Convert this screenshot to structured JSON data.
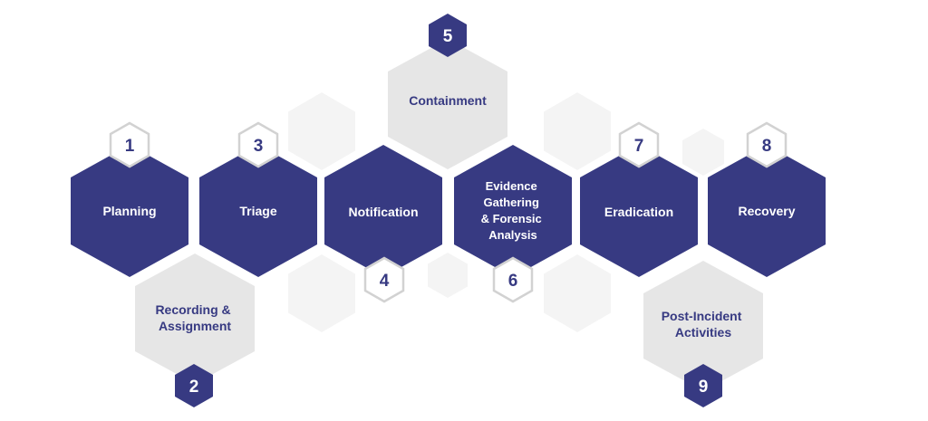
{
  "colors": {
    "primary": "#373a82",
    "light": "#e6e6e6",
    "ghost": "#f4f4f4",
    "badge_border": "#d2d2d2",
    "white": "#ffffff"
  },
  "steps": [
    {
      "number": "1",
      "label": "Planning"
    },
    {
      "number": "2",
      "label": "Recording & Assignment"
    },
    {
      "number": "3",
      "label": "Triage"
    },
    {
      "number": "4",
      "label": "Notification"
    },
    {
      "number": "5",
      "label": "Containment"
    },
    {
      "number": "6",
      "label": "Evidence Gathering & Forensic Analysis"
    },
    {
      "number": "7",
      "label": "Eradication"
    },
    {
      "number": "8",
      "label": "Recovery"
    },
    {
      "number": "9",
      "label": "Post-Incident Activities"
    }
  ]
}
